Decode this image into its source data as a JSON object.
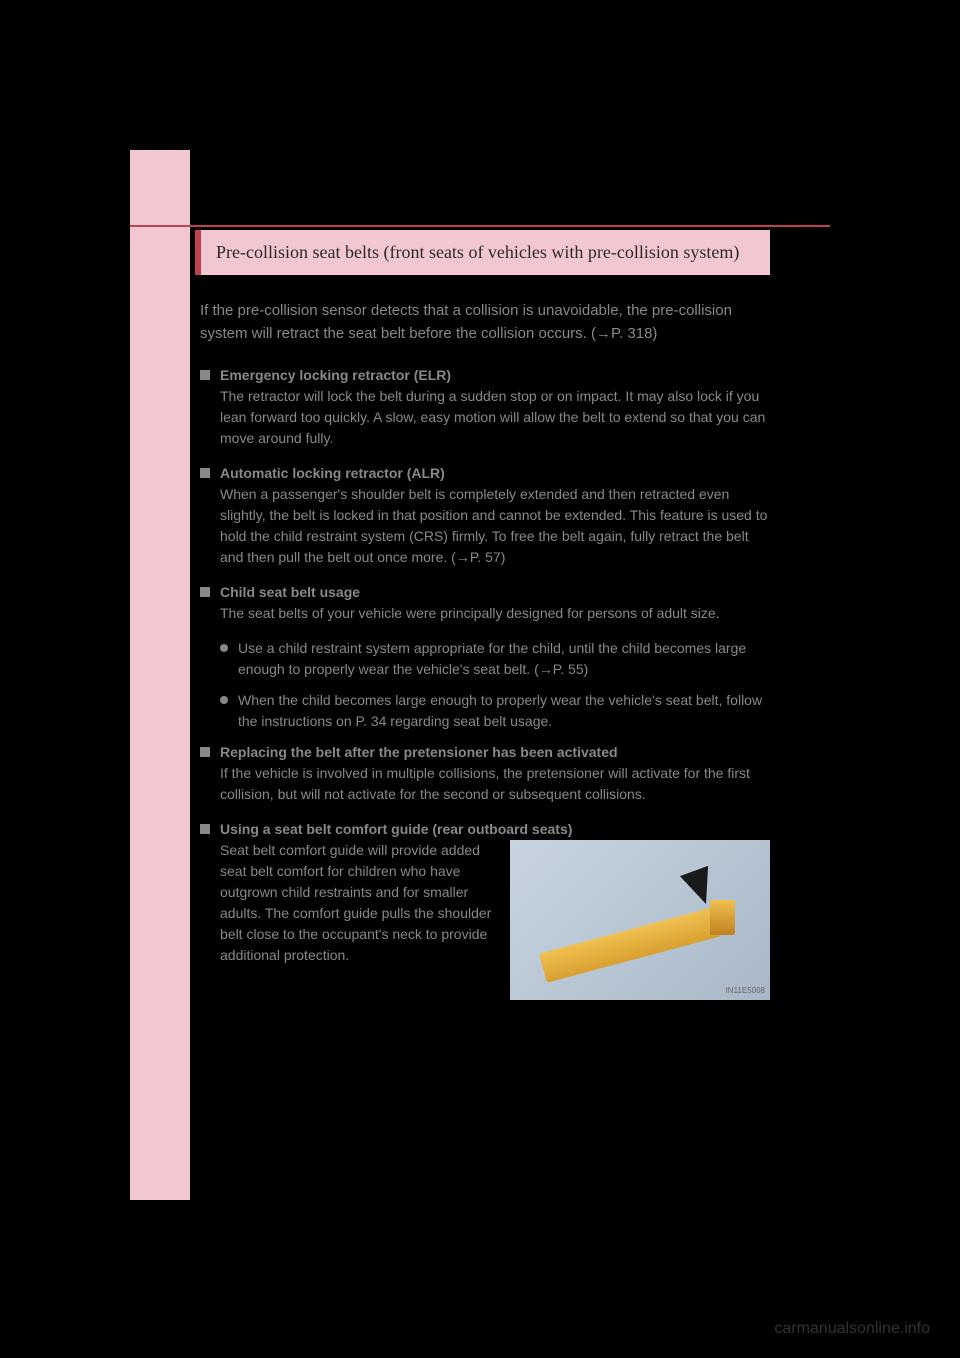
{
  "banner": {
    "title": "Pre-collision seat belts (front seats of vehicles with pre-collision system)"
  },
  "intro": "If the pre-collision sensor detects that a collision is unavoidable, the pre-collision system will retract the seat belt before the collision occurs. (→P. 318)",
  "sections": [
    {
      "title": "Emergency locking retractor (ELR)",
      "text": "The retractor will lock the belt during a sudden stop or on impact. It may also lock if you lean forward too quickly. A slow, easy motion will allow the belt to extend so that you can move around fully."
    },
    {
      "title": "Automatic locking retractor (ALR)",
      "text": "When a passenger's shoulder belt is completely extended and then retracted even slightly, the belt is locked in that position and cannot be extended. This feature is used to hold the child restraint system (CRS) firmly. To free the belt again, fully retract the belt and then pull the belt out once more. (→P. 57)"
    },
    {
      "title": "Child seat belt usage",
      "text": "The seat belts of your vehicle were principally designed for persons of adult size.",
      "subitems": [
        "Use a child restraint system appropriate for the child, until the child becomes large enough to properly wear the vehicle's seat belt. (→P. 55)",
        "When the child becomes large enough to properly wear the vehicle's seat belt, follow the instructions on P. 34 regarding seat belt usage."
      ]
    },
    {
      "title": "Replacing the belt after the pretensioner has been activated",
      "text": "If the vehicle is involved in multiple collisions, the pretensioner will activate for the first collision, but will not activate for the second or subsequent collisions."
    },
    {
      "title": "Using a seat belt comfort guide (rear outboard seats)",
      "text": "Seat belt comfort guide will provide added seat belt comfort for children who have outgrown child restraints and for smaller adults. The comfort guide pulls the shoulder belt close to the occupant's neck to provide additional protection."
    }
  ],
  "image": {
    "label": "IN11E5008"
  },
  "watermark": "carmanualsonline.info",
  "colors": {
    "background": "#000000",
    "sidebar": "#f3c7d1",
    "accent": "#c04050",
    "text_muted": "#888888",
    "banner_bg": "#f3c7d1"
  }
}
